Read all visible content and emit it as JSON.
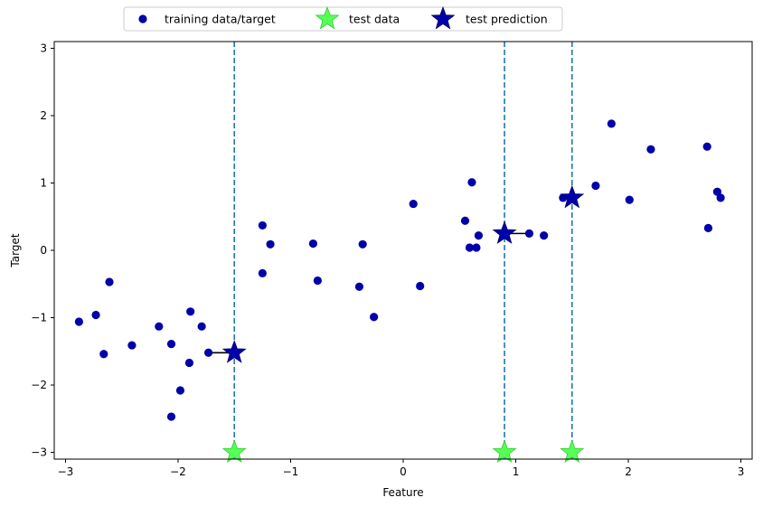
{
  "chart_data": {
    "type": "scatter",
    "xlabel": "Feature",
    "ylabel": "Target",
    "xlim": [
      -3.1,
      3.1
    ],
    "ylim": [
      -3.1,
      3.1
    ],
    "x_ticks": [
      -3,
      -2,
      -1,
      0,
      1,
      2,
      3
    ],
    "y_ticks": [
      -3,
      -2,
      -1,
      0,
      1,
      2,
      3
    ],
    "grid": false,
    "legend": {
      "placement": "top-center",
      "entries": [
        {
          "label": "training data/target",
          "marker": "circle",
          "color": "#0000aa"
        },
        {
          "label": "test data",
          "marker": "star",
          "color": "#55ff55"
        },
        {
          "label": "test prediction",
          "marker": "star",
          "color": "#0000aa"
        }
      ]
    },
    "series": [
      {
        "name": "training data/target",
        "marker": "circle",
        "color": "#0000aa",
        "points": [
          [
            -2.88,
            -1.06
          ],
          [
            -2.73,
            -0.96
          ],
          [
            -2.66,
            -1.54
          ],
          [
            -2.61,
            -0.47
          ],
          [
            -2.41,
            -1.41
          ],
          [
            -2.17,
            -1.13
          ],
          [
            -2.06,
            -1.39
          ],
          [
            -2.06,
            -2.47
          ],
          [
            -1.98,
            -2.08
          ],
          [
            -1.9,
            -1.67
          ],
          [
            -1.89,
            -0.91
          ],
          [
            -1.79,
            -1.13
          ],
          [
            -1.73,
            -1.52
          ],
          [
            -1.25,
            0.37
          ],
          [
            -1.25,
            -0.34
          ],
          [
            -1.18,
            0.09
          ],
          [
            -0.8,
            0.1
          ],
          [
            -0.76,
            -0.45
          ],
          [
            -0.39,
            -0.54
          ],
          [
            -0.36,
            0.09
          ],
          [
            -0.26,
            -0.99
          ],
          [
            0.09,
            0.69
          ],
          [
            0.15,
            -0.53
          ],
          [
            0.55,
            0.44
          ],
          [
            0.59,
            0.04
          ],
          [
            0.61,
            1.01
          ],
          [
            0.65,
            0.04
          ],
          [
            0.67,
            0.22
          ],
          [
            1.12,
            0.25
          ],
          [
            1.25,
            0.22
          ],
          [
            1.42,
            0.78
          ],
          [
            1.71,
            0.96
          ],
          [
            1.85,
            1.88
          ],
          [
            2.01,
            0.75
          ],
          [
            2.2,
            1.5
          ],
          [
            2.7,
            1.54
          ],
          [
            2.71,
            0.33
          ],
          [
            2.79,
            0.87
          ],
          [
            2.82,
            0.78
          ]
        ]
      },
      {
        "name": "test data",
        "marker": "star",
        "color": "#55ff55",
        "points": [
          [
            -1.5,
            -3.0
          ],
          [
            0.9,
            -3.0
          ],
          [
            1.5,
            -3.0
          ]
        ]
      },
      {
        "name": "test prediction",
        "marker": "star",
        "color": "#0000aa",
        "points": [
          [
            -1.5,
            -1.52
          ],
          [
            0.9,
            0.25
          ],
          [
            1.5,
            0.78
          ]
        ]
      }
    ],
    "vlines": [
      -1.5,
      0.9,
      1.5
    ],
    "vline_color": "#1f77b4",
    "neighbor_links": [
      {
        "from": [
          -1.5,
          -1.52
        ],
        "to": [
          -1.73,
          -1.52
        ]
      },
      {
        "from": [
          0.9,
          0.25
        ],
        "to": [
          1.12,
          0.25
        ]
      },
      {
        "from": [
          1.5,
          0.78
        ],
        "to": [
          1.42,
          0.78
        ]
      }
    ]
  }
}
